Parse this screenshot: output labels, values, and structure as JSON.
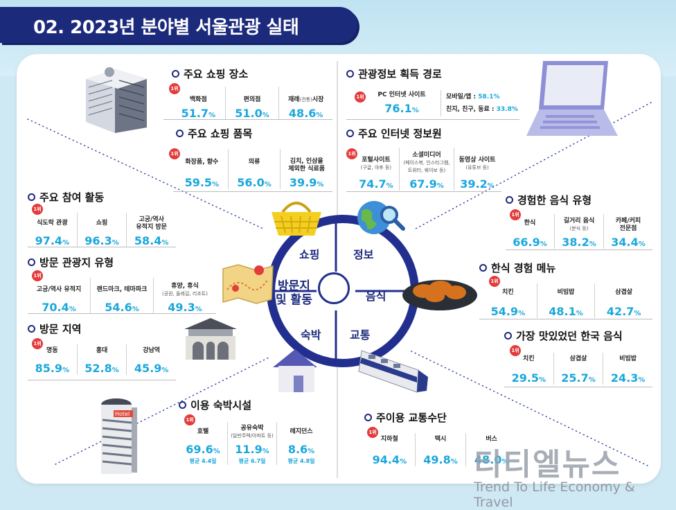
{
  "title": "02. 2023년 분야별 서울관광 실태",
  "rank_badge": "1위",
  "wheel": {
    "center": [
      "방문지",
      "및 활동"
    ],
    "shopping": "쇼핑",
    "info": "정보",
    "food": "음식",
    "lodging": "숙박",
    "transport": "교통"
  },
  "shop_places": {
    "title": "주요 쇼핑 장소",
    "items": [
      {
        "label": "백화점",
        "value": "51.7",
        "unit": "%"
      },
      {
        "label": "편의점",
        "value": "51.0",
        "unit": "%"
      },
      {
        "label": "재래",
        "sub": "(전통)",
        "label2": "시장",
        "value": "48.6",
        "unit": "%"
      }
    ]
  },
  "shop_items": {
    "title": "주요 쇼핑 품목",
    "items": [
      {
        "label": "화장품, 향수",
        "value": "59.5",
        "unit": "%"
      },
      {
        "label": "의류",
        "value": "56.0",
        "unit": "%"
      },
      {
        "label": "김치, 인삼을",
        "label2": "제외한 식료품",
        "value": "39.9",
        "unit": "%"
      }
    ]
  },
  "info_route": {
    "title": "관광정보 획득 경로",
    "main_label": "PC 인터넷 사이트",
    "main_value": "76.1",
    "unit": "%",
    "r1_label": "모바일/앱 : ",
    "r1_value": "58.1%",
    "r2_label": "친지, 친구, 동료 : ",
    "r2_value": "33.8%"
  },
  "info_internet": {
    "title": "주요 인터넷 정보원",
    "items": [
      {
        "label": "포털사이트",
        "sub": "(구글, 야후 등)",
        "value": "74.7",
        "unit": "%"
      },
      {
        "label": "소셜미디어",
        "sub": "(페이스북, 인스타그램,",
        "sub2": "트위터, 웨이보 등)",
        "value": "67.9",
        "unit": "%"
      },
      {
        "label": "동영상 사이트",
        "sub": "(유튜브 등)",
        "value": "39.2",
        "unit": "%"
      }
    ]
  },
  "activities": {
    "title": "주요 참여 활동",
    "items": [
      {
        "label": "식도락 관광",
        "value": "97.4",
        "unit": "%"
      },
      {
        "label": "쇼핑",
        "value": "96.3",
        "unit": "%"
      },
      {
        "label": "고궁/역사",
        "label2": "유적지 방문",
        "value": "58.4",
        "unit": "%"
      }
    ]
  },
  "spot_types": {
    "title": "방문 관광지 유형",
    "items": [
      {
        "label": "고궁/역사 유적지",
        "value": "70.4",
        "unit": "%"
      },
      {
        "label": "랜드마크, 테마파크",
        "value": "54.6",
        "unit": "%"
      },
      {
        "label": "휴양, 휴식",
        "sub": "(공원, 둘레길, 리조트)",
        "value": "49.3",
        "unit": "%"
      }
    ]
  },
  "regions": {
    "title": "방문 지역",
    "items": [
      {
        "label": "명동",
        "value": "85.9",
        "unit": "%"
      },
      {
        "label": "홍대",
        "value": "52.8",
        "unit": "%"
      },
      {
        "label": "강남역",
        "value": "45.9",
        "unit": "%"
      }
    ]
  },
  "food_types": {
    "title": "경험한 음식 유형",
    "items": [
      {
        "label": "한식",
        "value": "66.9",
        "unit": "%"
      },
      {
        "label": "길거리 음식",
        "sub": "(분식 등)",
        "value": "38.2",
        "unit": "%"
      },
      {
        "label": "카페/커피",
        "label2": "전문점",
        "value": "34.4",
        "unit": "%"
      }
    ]
  },
  "food_menu": {
    "title": "한식 경험 메뉴",
    "items": [
      {
        "label": "치킨",
        "value": "54.9",
        "unit": "%"
      },
      {
        "label": "비빔밥",
        "value": "48.1",
        "unit": "%"
      },
      {
        "label": "삼겹살",
        "value": "42.7",
        "unit": "%"
      }
    ]
  },
  "food_best": {
    "title": "가장 맛있었던 한국 음식",
    "items": [
      {
        "label": "치킨",
        "value": "29.5",
        "unit": "%"
      },
      {
        "label": "삼겹살",
        "value": "25.7",
        "unit": "%"
      },
      {
        "label": "비빔밥",
        "value": "24.3",
        "unit": "%"
      }
    ]
  },
  "lodging": {
    "title": "이용 숙박시설",
    "items": [
      {
        "label": "호텔",
        "value": "69.6",
        "unit": "%",
        "note": "평균 4.4일"
      },
      {
        "label": "공유숙박",
        "sub": "(일반주택/아파트 등)",
        "value": "11.9",
        "unit": "%",
        "note": "평균 6.7일"
      },
      {
        "label": "레지던스",
        "value": "8.6",
        "unit": "%",
        "note": "평균 4.8일"
      }
    ]
  },
  "transport": {
    "title": "주이용 교통수단",
    "items": [
      {
        "label": "지하철",
        "value": "94.4",
        "unit": "%"
      },
      {
        "label": "택시",
        "value": "49.8",
        "unit": "%"
      },
      {
        "label": "버스",
        "value": "48.0",
        "unit": "%"
      }
    ]
  },
  "hotel_sign": "Hotel",
  "watermark": {
    "name": "티티엘뉴스",
    "tagline": "Trend To Life Economy & Travel"
  },
  "colors": {
    "navy": "#1c2a7c",
    "accent": "#1aa7dc",
    "badge": "#e43b3b"
  }
}
